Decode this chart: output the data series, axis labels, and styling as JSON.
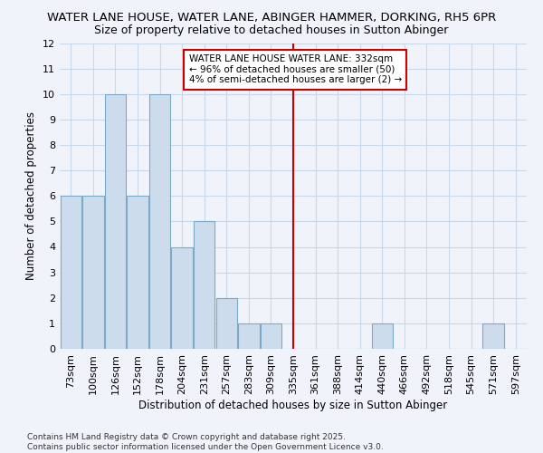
{
  "title1": "WATER LANE HOUSE, WATER LANE, ABINGER HAMMER, DORKING, RH5 6PR",
  "title2": "Size of property relative to detached houses in Sutton Abinger",
  "xlabel": "Distribution of detached houses by size in Sutton Abinger",
  "ylabel": "Number of detached properties",
  "categories": [
    "73sqm",
    "100sqm",
    "126sqm",
    "152sqm",
    "178sqm",
    "204sqm",
    "231sqm",
    "257sqm",
    "283sqm",
    "309sqm",
    "335sqm",
    "361sqm",
    "388sqm",
    "414sqm",
    "440sqm",
    "466sqm",
    "492sqm",
    "518sqm",
    "545sqm",
    "571sqm",
    "597sqm"
  ],
  "values": [
    6,
    6,
    10,
    6,
    10,
    4,
    5,
    2,
    1,
    1,
    0,
    0,
    0,
    0,
    1,
    0,
    0,
    0,
    0,
    1,
    0
  ],
  "bar_color": "#ccdcec",
  "bar_edgecolor": "#7aaac8",
  "vline_x": 10.0,
  "vline_color": "#cc0000",
  "annotation_text": "WATER LANE HOUSE WATER LANE: 332sqm\n← 96% of detached houses are smaller (50)\n4% of semi-detached houses are larger (2) →",
  "ylim": [
    0,
    12
  ],
  "yticks": [
    0,
    1,
    2,
    3,
    4,
    5,
    6,
    7,
    8,
    9,
    10,
    11,
    12
  ],
  "footer": "Contains HM Land Registry data © Crown copyright and database right 2025.\nContains public sector information licensed under the Open Government Licence v3.0.",
  "bg_color": "#f0f4fa",
  "grid_color": "#c8d8e8",
  "title_fontsize": 9.5,
  "subtitle_fontsize": 9,
  "axis_label_fontsize": 8.5,
  "tick_fontsize": 8
}
